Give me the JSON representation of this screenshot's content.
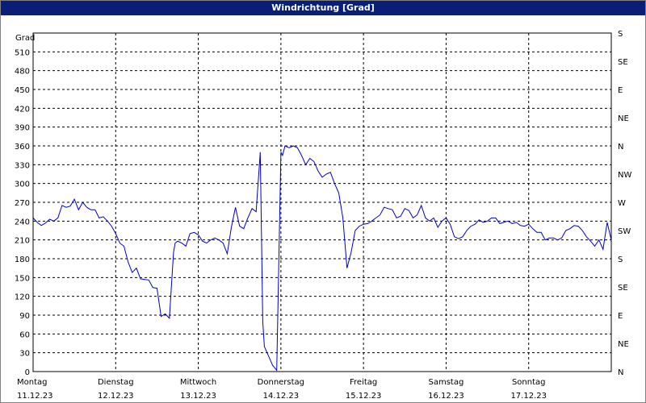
{
  "chart_data": {
    "title": "Windrichtung [Grad]",
    "type": "line",
    "ylabel": "Grad",
    "ylim": [
      0,
      540
    ],
    "y_ticks": [
      0,
      30,
      60,
      90,
      120,
      150,
      180,
      210,
      240,
      270,
      300,
      330,
      360,
      390,
      420,
      450,
      480,
      510
    ],
    "right_axis_labels": [
      "N",
      "NE",
      "E",
      "SE",
      "S",
      "SW",
      "W",
      "NW",
      "N",
      "NE",
      "E",
      "SE",
      "S"
    ],
    "x_categories": [
      {
        "day": "Montag",
        "date": "11.12.23"
      },
      {
        "day": "Dienstag",
        "date": "12.12.23"
      },
      {
        "day": "Mittwoch",
        "date": "13.12.23"
      },
      {
        "day": "Donnerstag",
        "date": "14.12.23"
      },
      {
        "day": "Freitag",
        "date": "15.12.23"
      },
      {
        "day": "Samstag",
        "date": "16.12.23"
      },
      {
        "day": "Sonntag",
        "date": "17.12.23"
      }
    ],
    "xlim_days": [
      0,
      7
    ],
    "grid": true,
    "line_color": "#0000cc",
    "series": [
      {
        "x": [
          0.0,
          0.05,
          0.1,
          0.15,
          0.2,
          0.25,
          0.3,
          0.35,
          0.4,
          0.45,
          0.5,
          0.55,
          0.6,
          0.65,
          0.7,
          0.75,
          0.8,
          0.85,
          0.9,
          0.95,
          1.0,
          1.05,
          1.1,
          1.15,
          1.2,
          1.25,
          1.3,
          1.35,
          1.4,
          1.45,
          1.5,
          1.55,
          1.6,
          1.65,
          1.7,
          1.72,
          1.75,
          1.8,
          1.85,
          1.9,
          1.95,
          2.0,
          2.05,
          2.1,
          2.15,
          2.2,
          2.25,
          2.3,
          2.35,
          2.4,
          2.45,
          2.5,
          2.55,
          2.6,
          2.65,
          2.7,
          2.75,
          2.78,
          2.8,
          2.85,
          2.9,
          2.95,
          3.0,
          3.02,
          3.05,
          3.1,
          3.15,
          3.2,
          3.25,
          3.3,
          3.35,
          3.4,
          3.45,
          3.5,
          3.55,
          3.6,
          3.65,
          3.7,
          3.75,
          3.8,
          3.85,
          3.9,
          3.95,
          4.0,
          4.05,
          4.1,
          4.15,
          4.2,
          4.25,
          4.3,
          4.35,
          4.4,
          4.45,
          4.5,
          4.55,
          4.6,
          4.65,
          4.7,
          4.75,
          4.8,
          4.85,
          4.9,
          4.95,
          5.0,
          5.05,
          5.1,
          5.15,
          5.2,
          5.25,
          5.3,
          5.35,
          5.4,
          5.45,
          5.5,
          5.55,
          5.6,
          5.65,
          5.7,
          5.75,
          5.8,
          5.85,
          5.9,
          5.95,
          6.0,
          6.05,
          6.1,
          6.15,
          6.2,
          6.25,
          6.3,
          6.35,
          6.4,
          6.45,
          6.5,
          6.55,
          6.6,
          6.65,
          6.7,
          6.75,
          6.8,
          6.85,
          6.9,
          6.95,
          7.0
        ],
        "y": [
          245,
          238,
          233,
          237,
          243,
          240,
          245,
          265,
          262,
          264,
          275,
          258,
          270,
          262,
          258,
          258,
          245,
          247,
          240,
          232,
          220,
          205,
          200,
          175,
          158,
          165,
          148,
          147,
          146,
          134,
          133,
          88,
          92,
          85,
          190,
          205,
          208,
          205,
          200,
          220,
          222,
          218,
          208,
          205,
          210,
          213,
          210,
          205,
          188,
          230,
          262,
          232,
          228,
          245,
          260,
          255,
          350,
          80,
          40,
          25,
          10,
          2,
          350,
          345,
          360,
          357,
          360,
          357,
          345,
          330,
          340,
          335,
          320,
          310,
          315,
          318,
          300,
          285,
          245,
          165,
          190,
          225,
          232,
          235,
          236,
          240,
          245,
          250,
          262,
          260,
          258,
          245,
          248,
          260,
          257,
          245,
          250,
          265,
          245,
          240,
          245,
          230,
          240,
          245,
          235,
          215,
          212,
          215,
          225,
          232,
          235,
          242,
          238,
          240,
          245,
          245,
          236,
          238,
          240,
          236,
          238,
          233,
          232,
          235,
          228,
          222,
          222,
          210,
          213,
          213,
          210,
          213,
          225,
          228,
          233,
          232,
          225,
          215,
          208,
          200,
          210,
          195,
          238,
          210
        ]
      }
    ]
  }
}
